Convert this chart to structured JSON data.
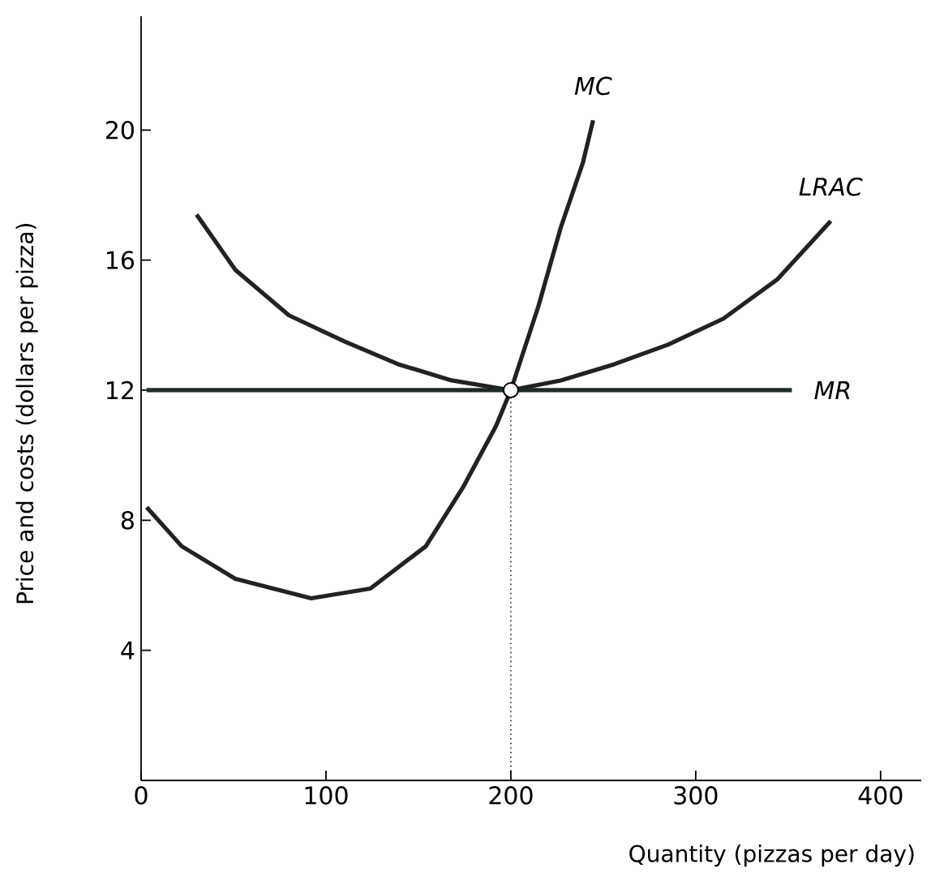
{
  "chart_data": {
    "type": "line",
    "xlabel": "Quantity (pizzas per day)",
    "ylabel": "Price and costs (dollars per pizza)",
    "xlim": [
      0,
      422
    ],
    "ylim": [
      0,
      23.5
    ],
    "xticks": [
      0,
      100,
      200,
      300,
      400
    ],
    "yticks": [
      4,
      8,
      12,
      16,
      20
    ],
    "grid": false,
    "legend": false,
    "series": [
      {
        "name": "MC",
        "color": "#222222",
        "x": [
          3,
          22,
          51,
          92,
          124,
          154,
          174,
          192,
          200,
          215,
          227,
          239,
          244.5
        ],
        "values": [
          8.4,
          7.2,
          6.2,
          5.6,
          5.9,
          7.2,
          9.0,
          10.9,
          12,
          14.6,
          17.0,
          19.0,
          20.3
        ]
      },
      {
        "name": "LRAC",
        "color": "#222222",
        "x": [
          30,
          51,
          80,
          110,
          139,
          168,
          200,
          227,
          256,
          285,
          315,
          344,
          373
        ],
        "values": [
          17.4,
          15.7,
          14.3,
          13.5,
          12.8,
          12.3,
          12,
          12.3,
          12.8,
          13.4,
          14.2,
          15.4,
          17.2
        ]
      },
      {
        "name": "MR",
        "color": "#1e2b28",
        "x": [
          3,
          352
        ],
        "values": [
          12,
          12
        ]
      },
      {
        "type": "line",
        "line_style": "dotted",
        "color": "#222222",
        "x": [
          200,
          200
        ],
        "values": [
          0,
          12
        ]
      },
      {
        "type": "scatter",
        "marker": "circle",
        "color": "#ffffff",
        "x": [
          200
        ],
        "values": [
          12
        ]
      }
    ]
  }
}
